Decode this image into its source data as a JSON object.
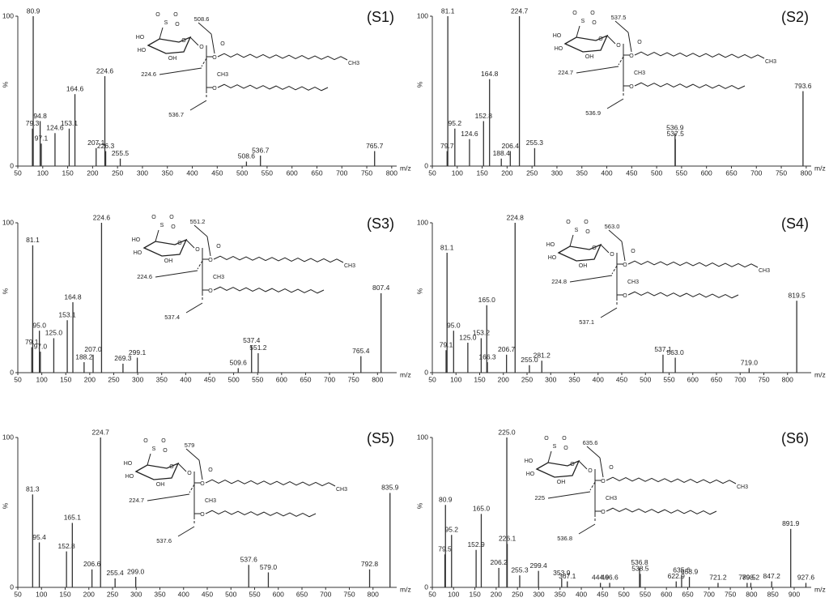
{
  "chart_data": [
    {
      "type": "bar",
      "title": "(S1)",
      "y_label": "%",
      "x_label": "m/z",
      "color": "#333333",
      "xlim": [
        50,
        810
      ],
      "xticks": [
        50,
        100,
        150,
        200,
        250,
        300,
        350,
        400,
        450,
        500,
        550,
        600,
        650,
        700,
        750,
        800
      ],
      "ylim": [
        0,
        100
      ],
      "yticks": [
        0,
        100
      ],
      "x": [
        79.3,
        80.9,
        94.8,
        97.1,
        124.6,
        153.1,
        164.6,
        207.1,
        224.6,
        226.3,
        255.5,
        508.6,
        536.7,
        765.7
      ],
      "values": [
        25,
        100,
        30,
        15,
        22,
        25,
        48,
        12,
        60,
        10,
        5,
        3,
        7,
        10
      ],
      "labels": [
        "79.3",
        "80.9",
        "94.8",
        "97.1",
        "124.6",
        "153.1",
        "164.6",
        "207.1",
        "224.6",
        "226.3",
        "255.5",
        "508.6",
        "536.7",
        "765.7"
      ],
      "structure": {
        "fragments": [
          "508.6",
          "224.6",
          "536.7"
        ],
        "atoms": [
          "S",
          "O",
          "O",
          "O",
          "HO",
          "HO",
          "OH",
          "O",
          "O",
          "O",
          "O",
          "O",
          "CH3",
          "CH3"
        ]
      }
    },
    {
      "type": "bar",
      "title": "(S2)",
      "y_label": "%",
      "x_label": "m/z",
      "color": "#333333",
      "xlim": [
        50,
        810
      ],
      "xticks": [
        50,
        100,
        150,
        200,
        250,
        300,
        350,
        400,
        450,
        500,
        550,
        600,
        650,
        700,
        750,
        800
      ],
      "ylim": [
        0,
        100
      ],
      "yticks": [
        0,
        100
      ],
      "x": [
        79.7,
        81.1,
        95.2,
        124.6,
        152.8,
        164.8,
        188.4,
        206.4,
        224.7,
        255.3,
        536.9,
        537.5,
        793.6
      ],
      "values": [
        10,
        100,
        25,
        18,
        30,
        58,
        5,
        10,
        100,
        12,
        22,
        18,
        50
      ],
      "labels": [
        "79.7",
        "81.1",
        "95.2",
        "124.6",
        "152.8",
        "164.8",
        "188.4",
        "206.4",
        "224.7",
        "255.3",
        "536.9",
        "537.5",
        "793.6"
      ],
      "structure": {
        "fragments": [
          "537.5",
          "224.7",
          "536.9"
        ],
        "atoms": [
          "S",
          "O",
          "O",
          "O",
          "HO",
          "HO",
          "OH",
          "O",
          "O",
          "O",
          "O",
          "O",
          "CH3",
          "CH3"
        ]
      }
    },
    {
      "type": "bar",
      "title": "(S3)",
      "y_label": "%",
      "x_label": "m/z",
      "color": "#333333",
      "xlim": [
        50,
        840
      ],
      "xticks": [
        50,
        100,
        150,
        200,
        250,
        300,
        350,
        400,
        450,
        500,
        550,
        600,
        650,
        700,
        750,
        800
      ],
      "ylim": [
        0,
        100
      ],
      "yticks": [
        0,
        100
      ],
      "x": [
        79.1,
        81.1,
        95.0,
        97.0,
        125.0,
        153.1,
        164.8,
        188.2,
        207.0,
        224.6,
        269.3,
        299.1,
        509.6,
        537.4,
        551.2,
        765.4,
        807.4
      ],
      "values": [
        17,
        85,
        28,
        14,
        23,
        35,
        47,
        7,
        12,
        100,
        6,
        10,
        3,
        18,
        13,
        11,
        53
      ],
      "labels": [
        "79.1",
        "81.1",
        "95.0",
        "97.0",
        "125.0",
        "153.1",
        "164.8",
        "188.2",
        "207.0",
        "224.6",
        "269.3",
        "299.1",
        "509.6",
        "537.4",
        "551.2",
        "765.4",
        "807.4"
      ],
      "structure": {
        "fragments": [
          "551.2",
          "224.6",
          "537.4"
        ],
        "atoms": [
          "S",
          "O",
          "O",
          "O",
          "HO",
          "HO",
          "OH",
          "O",
          "O",
          "O",
          "O",
          "O",
          "CH3",
          "CH3"
        ]
      }
    },
    {
      "type": "bar",
      "title": "(S4)",
      "y_label": "%",
      "x_label": "m/z",
      "color": "#333333",
      "xlim": [
        50,
        850
      ],
      "xticks": [
        50,
        100,
        150,
        200,
        250,
        300,
        350,
        400,
        450,
        500,
        550,
        600,
        650,
        700,
        750,
        800
      ],
      "ylim": [
        0,
        100
      ],
      "yticks": [
        0,
        100
      ],
      "x": [
        79.1,
        81.1,
        95.0,
        125.0,
        153.2,
        165.0,
        166.3,
        206.7,
        224.8,
        255.0,
        281.2,
        537.1,
        563.0,
        719.0,
        819.5
      ],
      "values": [
        15,
        80,
        28,
        20,
        23,
        45,
        7,
        12,
        100,
        5,
        8,
        12,
        10,
        3,
        48
      ],
      "labels": [
        "79.1",
        "81.1",
        "95.0",
        "125.0",
        "153.2",
        "165.0",
        "166.3",
        "206.7",
        "224.8",
        "255.0",
        "281.2",
        "537.1",
        "563.0",
        "719.0",
        "819.5"
      ],
      "structure": {
        "fragments": [
          "563.0",
          "224.8",
          "537.1"
        ],
        "atoms": [
          "S",
          "O",
          "O",
          "O",
          "HO",
          "HO",
          "OH",
          "O",
          "O",
          "O",
          "O",
          "O",
          "CH3",
          "CH3"
        ]
      }
    },
    {
      "type": "bar",
      "title": "(S5)",
      "y_label": "%",
      "x_label": "m/z",
      "color": "#333333",
      "xlim": [
        50,
        850
      ],
      "xticks": [
        50,
        100,
        150,
        200,
        250,
        300,
        350,
        400,
        450,
        500,
        550,
        600,
        650,
        700,
        750,
        800
      ],
      "ylim": [
        0,
        100
      ],
      "yticks": [
        0,
        100
      ],
      "x": [
        81.3,
        95.4,
        152.8,
        165.1,
        206.6,
        224.7,
        255.4,
        299.0,
        537.6,
        579.0,
        792.8,
        835.9
      ],
      "values": [
        62,
        30,
        24,
        43,
        12,
        100,
        6,
        7,
        15,
        10,
        12,
        63
      ],
      "labels": [
        "81.3",
        "95.4",
        "152.8",
        "165.1",
        "206.6",
        "224.7",
        "255.4",
        "299.0",
        "537.6",
        "579.0",
        "792.8",
        "835.9"
      ],
      "structure": {
        "fragments": [
          "579",
          "224.7",
          "537.6"
        ],
        "atoms": [
          "S",
          "O",
          "O",
          "O",
          "HO",
          "HO",
          "OH",
          "O",
          "O",
          "O",
          "O",
          "O",
          "CH3",
          "CH3"
        ]
      }
    },
    {
      "type": "bar",
      "title": "(S6)",
      "y_label": "%",
      "x_label": "m/z",
      "color": "#333333",
      "xlim": [
        50,
        940
      ],
      "xticks": [
        50,
        100,
        150,
        200,
        250,
        300,
        350,
        400,
        450,
        500,
        550,
        600,
        650,
        700,
        750,
        800,
        850,
        900
      ],
      "ylim": [
        0,
        100
      ],
      "yticks": [
        0,
        100
      ],
      "x": [
        79.5,
        80.9,
        95.2,
        152.9,
        165.0,
        206.2,
        225.0,
        226.1,
        255.3,
        299.4,
        353.9,
        367.1,
        444.9,
        466.6,
        536.8,
        538.5,
        622.9,
        635.6,
        653.9,
        721.2,
        789.5,
        798.2,
        847.2,
        891.9,
        927.6
      ],
      "values": [
        22,
        55,
        35,
        25,
        49,
        13,
        100,
        29,
        8,
        11,
        6,
        4,
        3,
        3,
        13,
        9,
        4,
        8,
        7,
        3,
        3,
        3,
        4,
        39,
        3
      ],
      "labels": [
        "79.5",
        "80.9",
        "95.2",
        "152.9",
        "165.0",
        "206.2",
        "225.0",
        "226.1",
        "255.3",
        "299.4",
        "353.9",
        "367.1",
        "444.9",
        "466.6",
        "536.8",
        "538.5",
        "622.9",
        "635.6",
        "653.9",
        "721.2",
        "789.5",
        "798.2",
        "847.2",
        "891.9",
        "927.6"
      ],
      "structure": {
        "fragments": [
          "635.6",
          "225",
          "536.8"
        ],
        "atoms": [
          "S",
          "O",
          "O",
          "O",
          "HO",
          "HO",
          "OH",
          "O",
          "O",
          "O",
          "O",
          "O",
          "CH3",
          "CH3"
        ]
      }
    }
  ]
}
